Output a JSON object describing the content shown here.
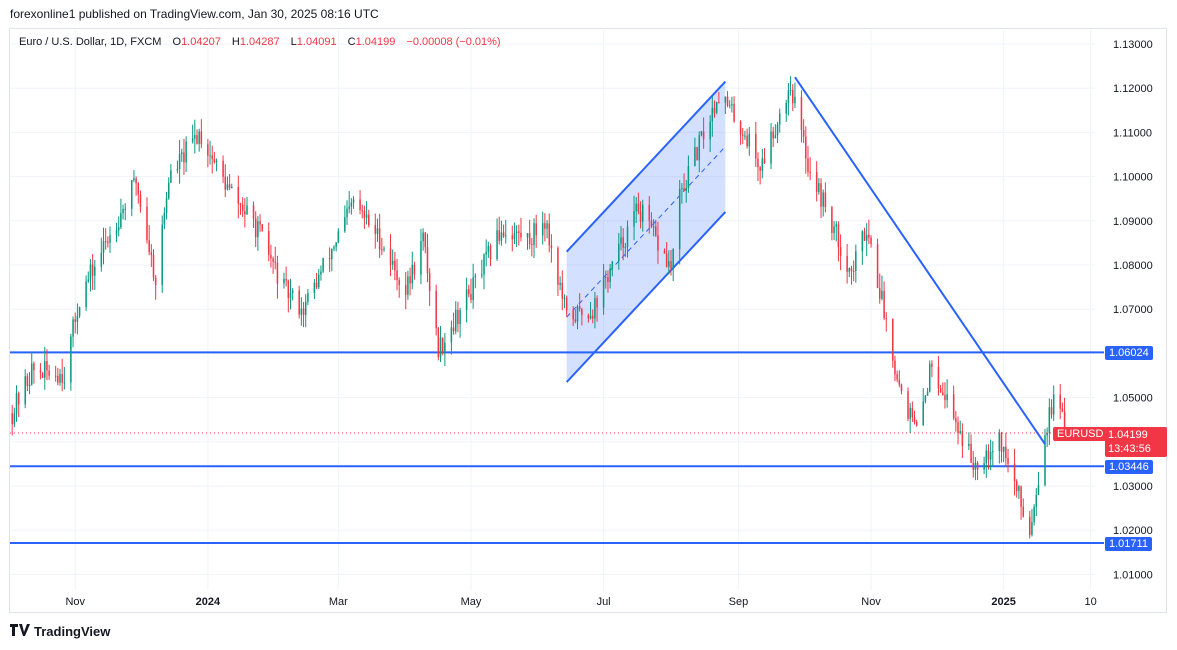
{
  "header": {
    "published_line": "forexonline1 published on TradingView.com, Jan 30, 2025 08:16 UTC"
  },
  "legend": {
    "symbol": "Euro / U.S. Dollar, 1D, FXCM",
    "open_label": "O",
    "open": "1.04207",
    "high_label": "H",
    "high": "1.04287",
    "low_label": "L",
    "low": "1.04091",
    "close_label": "C",
    "close": "1.04199",
    "change": "−0.00008 (−0.01%)"
  },
  "price_tags": {
    "level_1": "1.06024",
    "level_2": "1.03446",
    "level_3": "1.01711",
    "symbol": "EURUSD",
    "current_price": "1.04199",
    "countdown": "13:43:56"
  },
  "footer": {
    "brand": "TradingView"
  },
  "colors": {
    "up": "#089981",
    "down": "#f23645",
    "line": "#2962ff",
    "channel_fill": "#2962ff",
    "grid": "#f0f3fa"
  },
  "chart_data": {
    "type": "candlestick",
    "title": "Euro / U.S. Dollar, 1D, FXCM",
    "y_axis_ticks": [
      "1.13000",
      "1.12000",
      "1.11000",
      "1.10000",
      "1.09000",
      "1.08000",
      "1.07000",
      "1.06000",
      "1.05000",
      "1.04000",
      "1.03000",
      "1.02000",
      "1.01000"
    ],
    "ylim": [
      1.005,
      1.1335
    ],
    "x_axis_ticks": [
      "Nov",
      "2024",
      "Mar",
      "May",
      "Jul",
      "Sep",
      "Nov",
      "2025",
      "10"
    ],
    "x_tick_dates": [
      "2023-11-01",
      "2024-01-01",
      "2024-03-01",
      "2024-05-01",
      "2024-07-01",
      "2024-09-01",
      "2024-11-01",
      "2025-01-01",
      "2025-02-10"
    ],
    "xlim": [
      "2023-10-02",
      "2025-02-12"
    ],
    "price_path_close": [
      {
        "date": "2023-10-03",
        "close": 1.0465
      },
      {
        "date": "2023-10-12",
        "close": 1.056
      },
      {
        "date": "2023-10-27",
        "close": 1.0555
      },
      {
        "date": "2023-11-03",
        "close": 1.0725
      },
      {
        "date": "2023-11-15",
        "close": 1.085
      },
      {
        "date": "2023-11-29",
        "close": 1.099
      },
      {
        "date": "2023-12-08",
        "close": 1.0765
      },
      {
        "date": "2023-12-14",
        "close": 1.0995
      },
      {
        "date": "2023-12-28",
        "close": 1.11
      },
      {
        "date": "2024-01-10",
        "close": 1.0975
      },
      {
        "date": "2024-01-24",
        "close": 1.088
      },
      {
        "date": "2024-02-05",
        "close": 1.0745
      },
      {
        "date": "2024-02-14",
        "close": 1.07
      },
      {
        "date": "2024-03-08",
        "close": 1.094
      },
      {
        "date": "2024-03-20",
        "close": 1.086
      },
      {
        "date": "2024-04-01",
        "close": 1.074
      },
      {
        "date": "2024-04-09",
        "close": 1.086
      },
      {
        "date": "2024-04-16",
        "close": 1.061
      },
      {
        "date": "2024-05-03",
        "close": 1.076
      },
      {
        "date": "2024-05-15",
        "close": 1.088
      },
      {
        "date": "2024-05-28",
        "close": 1.086
      },
      {
        "date": "2024-06-04",
        "close": 1.0905
      },
      {
        "date": "2024-06-14",
        "close": 1.068
      },
      {
        "date": "2024-06-26",
        "close": 1.07
      },
      {
        "date": "2024-07-17",
        "close": 1.093
      },
      {
        "date": "2024-08-01",
        "close": 1.079
      },
      {
        "date": "2024-08-05",
        "close": 1.095
      },
      {
        "date": "2024-08-23",
        "close": 1.119
      },
      {
        "date": "2024-09-06",
        "close": 1.108
      },
      {
        "date": "2024-09-11",
        "close": 1.102
      },
      {
        "date": "2024-09-25",
        "close": 1.121
      },
      {
        "date": "2024-10-03",
        "close": 1.103
      },
      {
        "date": "2024-10-23",
        "close": 1.078
      },
      {
        "date": "2024-10-30",
        "close": 1.089
      },
      {
        "date": "2024-11-06",
        "close": 1.072
      },
      {
        "date": "2024-11-14",
        "close": 1.053
      },
      {
        "date": "2024-11-22",
        "close": 1.042
      },
      {
        "date": "2024-11-29",
        "close": 1.058
      },
      {
        "date": "2024-12-18",
        "close": 1.035
      },
      {
        "date": "2024-12-30",
        "close": 1.041
      },
      {
        "date": "2025-01-13",
        "close": 1.02
      },
      {
        "date": "2025-01-20",
        "close": 1.042
      },
      {
        "date": "2025-01-24",
        "close": 1.0495
      },
      {
        "date": "2025-01-30",
        "close": 1.04199
      }
    ],
    "last_candle": {
      "date": "2025-01-30",
      "open": 1.04207,
      "high": 1.04287,
      "low": 1.04091,
      "close": 1.04199
    },
    "horizontal_levels": [
      1.06024,
      1.03446,
      1.01711
    ],
    "current_price_line": 1.04199,
    "trendline_channel": {
      "upper": [
        {
          "date": "2024-06-14",
          "price": 1.083
        },
        {
          "date": "2024-08-26",
          "price": 1.1215
        }
      ],
      "lower": [
        {
          "date": "2024-06-14",
          "price": 1.0535
        },
        {
          "date": "2024-08-26",
          "price": 1.092
        }
      ],
      "midline": [
        {
          "date": "2024-06-14",
          "price": 1.0682
        },
        {
          "date": "2024-08-26",
          "price": 1.1068
        }
      ]
    },
    "descending_trendline": [
      {
        "date": "2024-09-27",
        "price": 1.1225
      },
      {
        "date": "2025-01-20",
        "price": 1.0395
      }
    ]
  }
}
